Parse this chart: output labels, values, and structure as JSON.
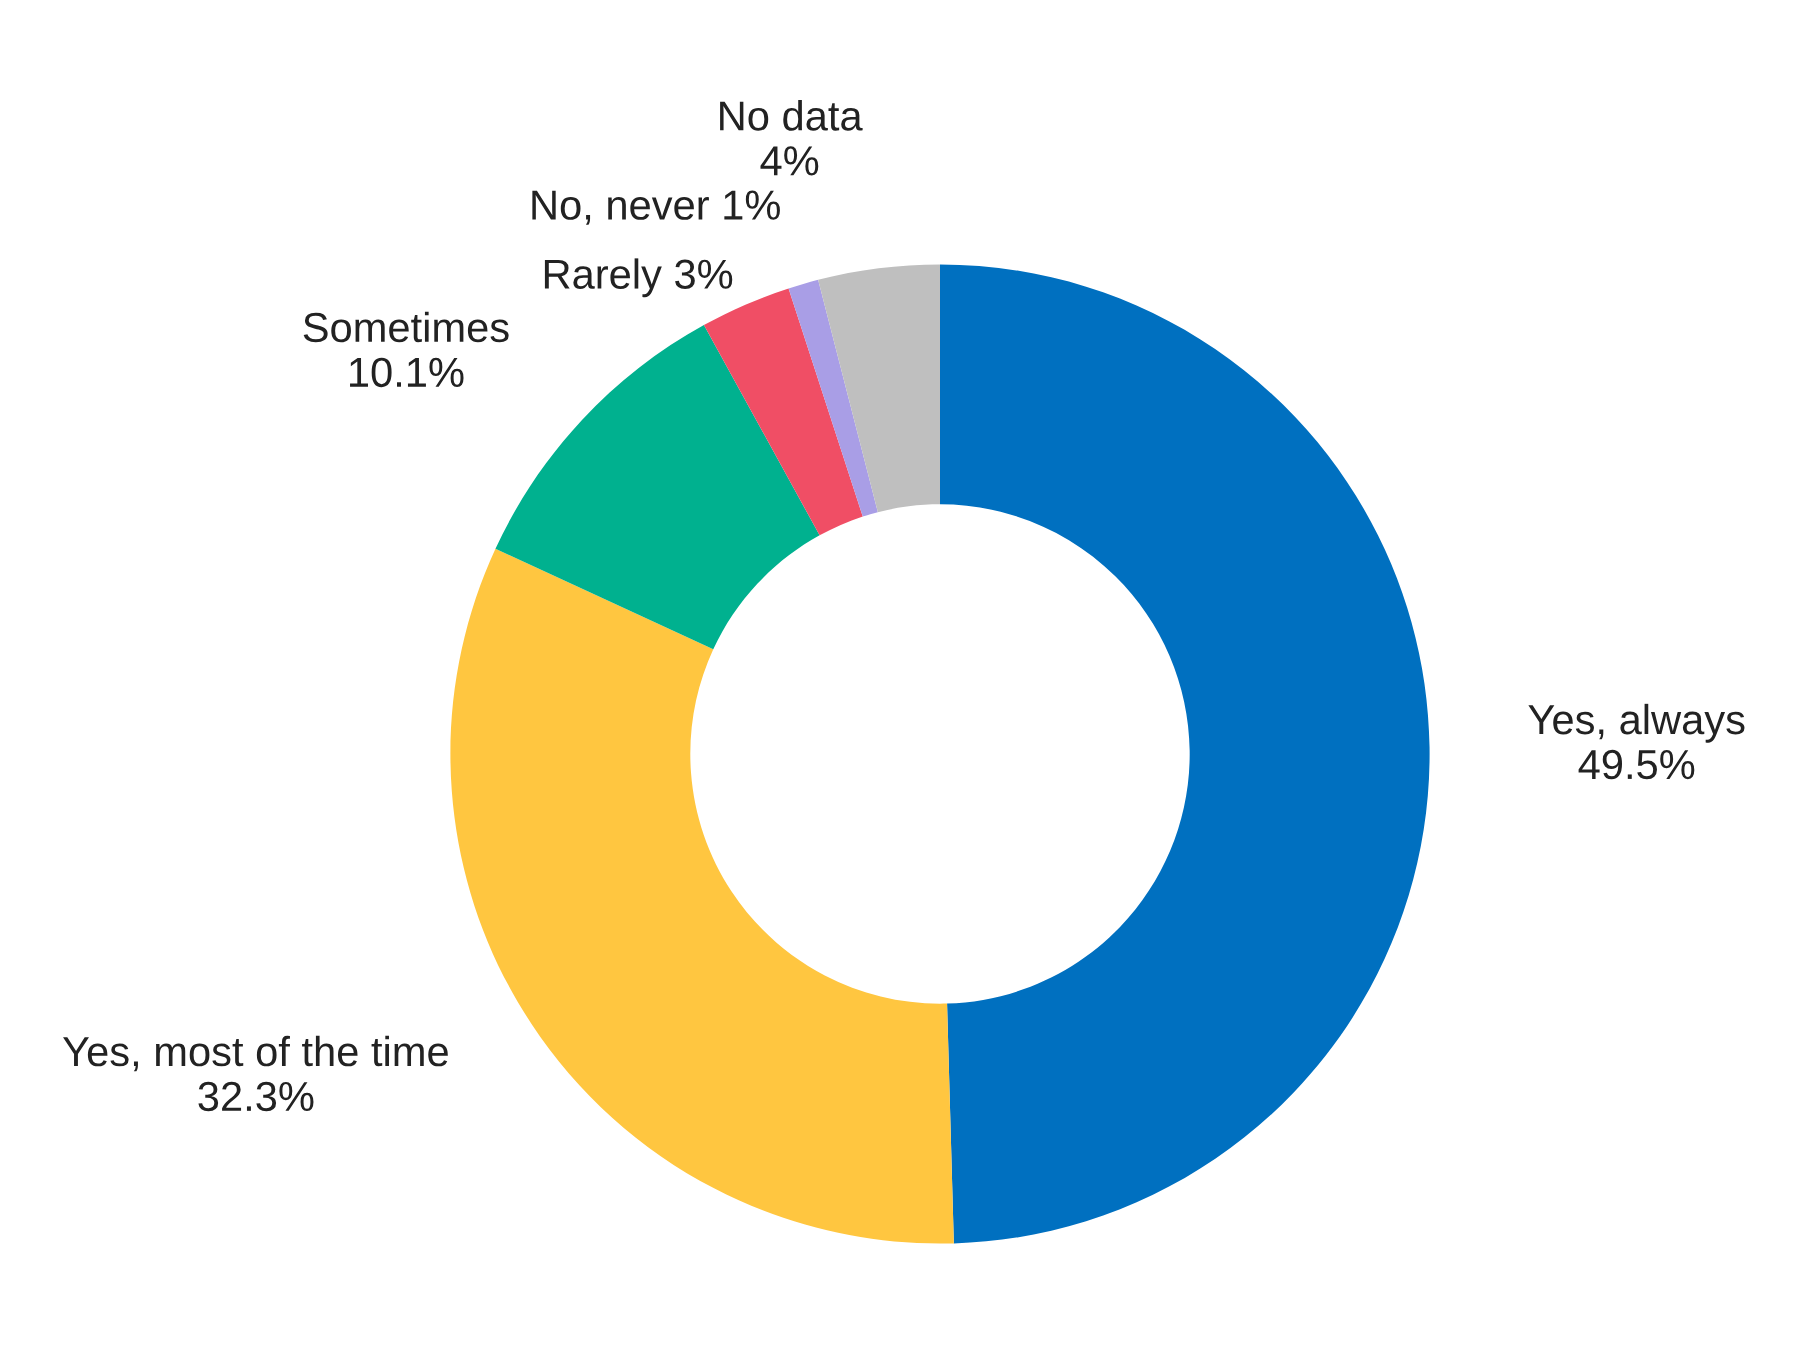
{
  "chart_data": {
    "type": "donut",
    "categories": [
      "Yes, always",
      "Yes, most of the time",
      "Sometimes",
      "Rarely",
      "No, never",
      "No data"
    ],
    "values": [
      49.5,
      32.3,
      10.1,
      3,
      1,
      4
    ],
    "value_labels": [
      "49.5%",
      "32.3%",
      "10.1%",
      "3%",
      "1%",
      "4%"
    ],
    "colors": [
      "#0070c0",
      "#ffc640",
      "#00b18f",
      "#f04e65",
      "#a99ee6",
      "#bfbfbf"
    ],
    "legend": false
  }
}
